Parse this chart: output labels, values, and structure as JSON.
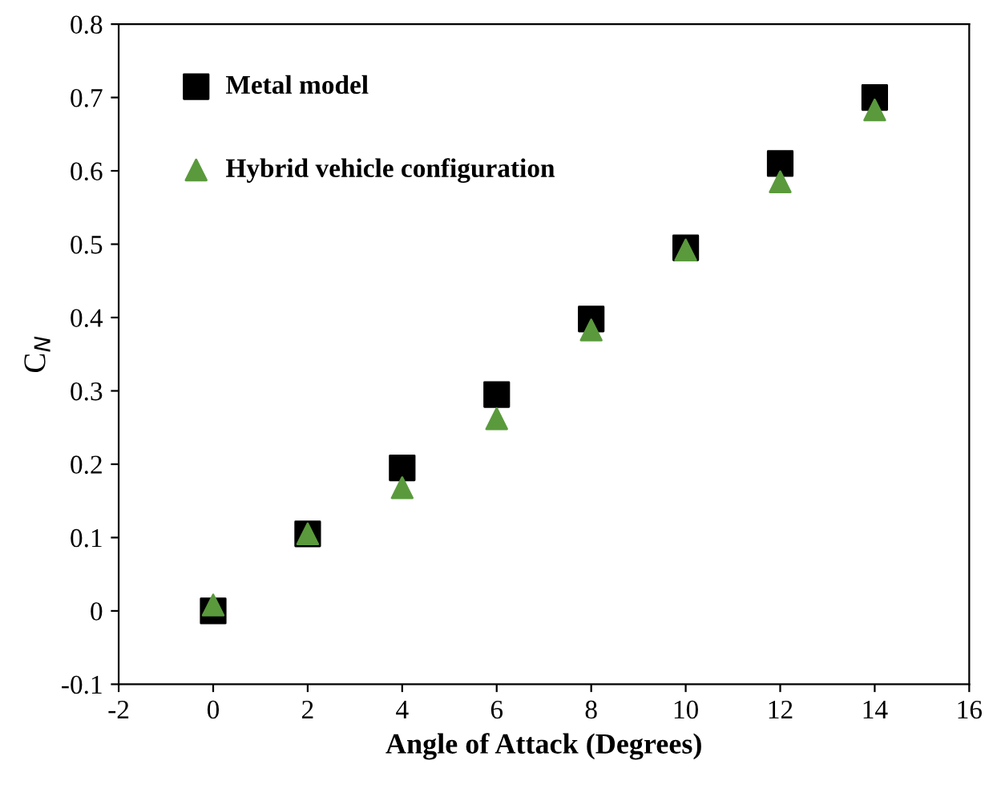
{
  "chart_data": {
    "type": "scatter",
    "xlabel": "Angle of Attack (Degrees)",
    "ylabel": "C$_{N}$",
    "x": [
      0,
      2,
      4,
      6,
      8,
      10,
      12,
      14
    ],
    "series": [
      {
        "name": "Metal model",
        "color": "#000000",
        "marker": "square",
        "values": [
          0.0,
          0.105,
          0.195,
          0.295,
          0.398,
          0.495,
          0.61,
          0.7
        ]
      },
      {
        "name": "Hybrid vehicle configuration",
        "color": "#5a9a3c",
        "marker": "triangle",
        "values": [
          0.008,
          0.105,
          0.168,
          0.262,
          0.383,
          0.492,
          0.585,
          0.683
        ]
      }
    ],
    "xlim": [
      -2,
      16
    ],
    "xticks": [
      -2,
      0,
      2,
      4,
      6,
      8,
      10,
      12,
      14,
      16
    ],
    "ylim": [
      -0.1,
      0.8
    ],
    "yticks": [
      -0.1,
      0,
      0.1,
      0.2,
      0.3,
      0.4,
      0.5,
      0.6,
      0.7,
      0.8
    ],
    "grid": false,
    "legend": "top left"
  }
}
